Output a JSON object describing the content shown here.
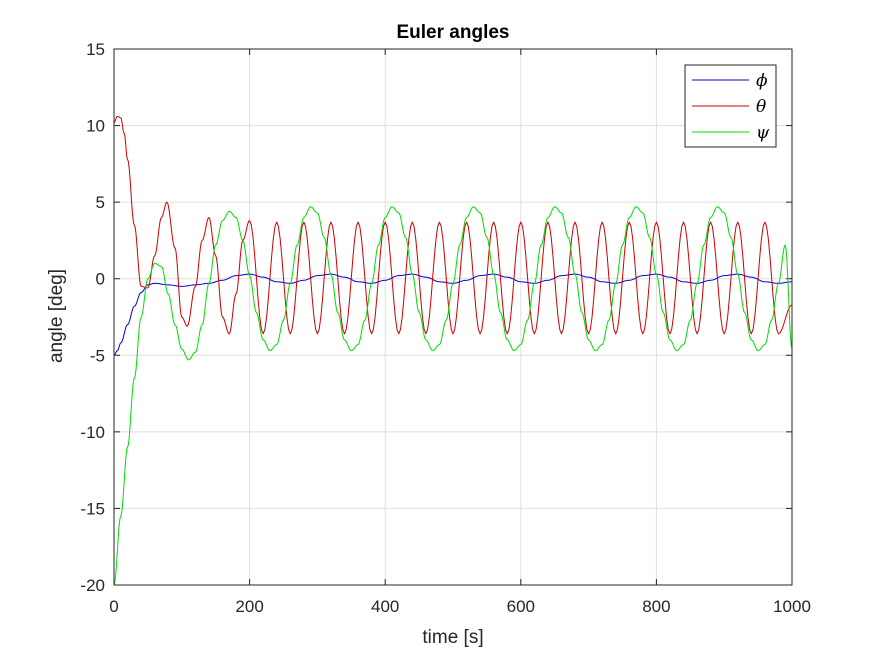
{
  "chart_data": {
    "type": "line",
    "title": "Euler angles",
    "xlabel": "time [s]",
    "ylabel": "angle [deg]",
    "xlim": [
      0,
      1000
    ],
    "ylim": [
      -20,
      15
    ],
    "xticks": [
      0,
      200,
      400,
      600,
      800,
      1000
    ],
    "xtick_labels": [
      "0",
      "200",
      "400",
      "600",
      "800",
      "1000"
    ],
    "yticks": [
      -20,
      -15,
      -10,
      -5,
      0,
      5,
      10,
      15
    ],
    "ytick_labels": [
      "-20",
      "-15",
      "-10",
      "-5",
      "0",
      "5",
      "10",
      "15"
    ],
    "grid": true,
    "legend_position": "top-right",
    "series": [
      {
        "name": "ϕ",
        "color": "#0000cc",
        "x": [
          0,
          5,
          10,
          20,
          30,
          40,
          50,
          60,
          80,
          100,
          120,
          140,
          160,
          180,
          200,
          220,
          240,
          260,
          280,
          300,
          320,
          340,
          360,
          380,
          400,
          420,
          440,
          460,
          480,
          500,
          520,
          540,
          560,
          580,
          600,
          620,
          640,
          660,
          680,
          700,
          720,
          740,
          760,
          780,
          800,
          820,
          840,
          860,
          880,
          900,
          920,
          940,
          960,
          980,
          1000
        ],
        "y": [
          -5,
          -4.7,
          -4.2,
          -3.0,
          -1.8,
          -0.9,
          -0.4,
          -0.3,
          -0.4,
          -0.5,
          -0.4,
          -0.3,
          -0.1,
          0.2,
          0.3,
          0.1,
          -0.2,
          -0.3,
          -0.1,
          0.2,
          0.3,
          0.1,
          -0.2,
          -0.3,
          -0.1,
          0.2,
          0.3,
          0.1,
          -0.2,
          -0.3,
          -0.1,
          0.2,
          0.3,
          0.1,
          -0.2,
          -0.3,
          -0.1,
          0.2,
          0.3,
          0.1,
          -0.2,
          -0.3,
          -0.1,
          0.2,
          0.3,
          0.1,
          -0.2,
          -0.3,
          -0.1,
          0.2,
          0.3,
          0.1,
          -0.2,
          -0.3,
          -0.2
        ]
      },
      {
        "name": "θ",
        "color": "#cc0000",
        "x": [
          0,
          5,
          10,
          15,
          20,
          30,
          40,
          50,
          60,
          70,
          78,
          90,
          100,
          108,
          120,
          130,
          140,
          150,
          160,
          170,
          180,
          190,
          200,
          220,
          240,
          260,
          280,
          300,
          320,
          340,
          360,
          380,
          400,
          420,
          440,
          460,
          480,
          500,
          520,
          540,
          560,
          580,
          600,
          620,
          640,
          660,
          680,
          700,
          720,
          740,
          760,
          780,
          800,
          820,
          840,
          860,
          880,
          900,
          920,
          940,
          960,
          980,
          1000
        ],
        "y": [
          10.2,
          10.6,
          10.5,
          9.5,
          7.8,
          3.5,
          -0.5,
          -0.6,
          1.5,
          4.0,
          5.0,
          2.0,
          -2.5,
          -3.1,
          -0.5,
          2.5,
          4.0,
          1.5,
          -2.5,
          -3.6,
          -1.0,
          2.5,
          3.8,
          -3.6,
          3.7,
          -3.6,
          3.7,
          -3.6,
          3.7,
          -3.6,
          3.7,
          -3.6,
          3.7,
          -3.6,
          3.7,
          -3.6,
          3.7,
          -3.6,
          3.7,
          -3.6,
          3.7,
          -3.6,
          3.7,
          -3.6,
          3.7,
          -3.6,
          3.7,
          -3.6,
          3.7,
          -3.6,
          3.7,
          -3.6,
          3.7,
          -3.6,
          3.7,
          -3.6,
          3.7,
          -3.6,
          3.7,
          -3.6,
          3.7,
          -3.6,
          -1.7
        ]
      },
      {
        "name": "ψ",
        "color": "#00dd00",
        "x": [
          0,
          10,
          20,
          30,
          40,
          50,
          60,
          70,
          80,
          90,
          100,
          110,
          120,
          130,
          140,
          150,
          160,
          170,
          180,
          190,
          200,
          210,
          220,
          230,
          240,
          250,
          260,
          270,
          280,
          290,
          300,
          310,
          320,
          330,
          340,
          350,
          360,
          370,
          380,
          390,
          400,
          410,
          420,
          430,
          440,
          450,
          460,
          470,
          480,
          490,
          500,
          510,
          520,
          530,
          540,
          550,
          560,
          570,
          580,
          590,
          600,
          610,
          620,
          630,
          640,
          650,
          660,
          670,
          680,
          690,
          700,
          710,
          720,
          730,
          740,
          750,
          760,
          770,
          780,
          790,
          800,
          810,
          820,
          830,
          840,
          850,
          860,
          870,
          880,
          890,
          900,
          910,
          920,
          930,
          940,
          950,
          960,
          970,
          980,
          990,
          1000
        ],
        "y": [
          -20,
          -15.5,
          -11,
          -6.5,
          -2.5,
          0,
          1.0,
          0.8,
          -1.0,
          -3.0,
          -4.6,
          -5.3,
          -4.8,
          -3.0,
          -0.3,
          2.2,
          3.8,
          4.4,
          4.0,
          2.5,
          0.2,
          -2.2,
          -4.0,
          -4.7,
          -4.3,
          -2.7,
          -0.3,
          2.2,
          4.0,
          4.7,
          4.3,
          2.7,
          0.3,
          -2.2,
          -4.0,
          -4.7,
          -4.3,
          -2.7,
          -0.3,
          2.2,
          4.0,
          4.7,
          4.3,
          2.7,
          0.3,
          -2.2,
          -4.0,
          -4.7,
          -4.3,
          -2.7,
          -0.3,
          2.2,
          4.0,
          4.7,
          4.3,
          2.7,
          0.3,
          -2.2,
          -4.0,
          -4.7,
          -4.3,
          -2.7,
          -0.3,
          2.2,
          4.0,
          4.7,
          4.3,
          2.7,
          0.3,
          -2.2,
          -4.0,
          -4.7,
          -4.3,
          -2.7,
          -0.3,
          2.2,
          4.0,
          4.7,
          4.3,
          2.7,
          0.3,
          -2.2,
          -4.0,
          -4.7,
          -4.3,
          -2.7,
          -0.3,
          2.2,
          4.0,
          4.7,
          4.3,
          2.7,
          0.3,
          -2.2,
          -4.0,
          -4.7,
          -4.3,
          -2.7,
          -0.3,
          2.2,
          -4.6
        ]
      }
    ]
  }
}
